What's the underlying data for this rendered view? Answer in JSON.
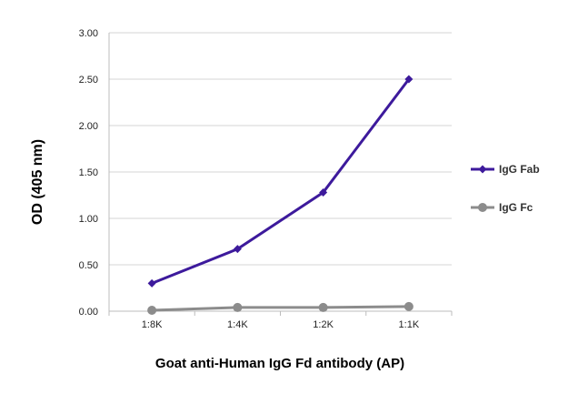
{
  "chart_data": {
    "type": "line",
    "title": "",
    "xlabel": "Goat anti-Human IgG Fd antibody (AP)",
    "ylabel": "OD (405 nm)",
    "categories": [
      "1:8K",
      "1:4K",
      "1:2K",
      "1:1K"
    ],
    "ylim": [
      0,
      3.0
    ],
    "yticks": [
      "0.00",
      "0.50",
      "1.00",
      "1.50",
      "2.00",
      "2.50",
      "3.00"
    ],
    "grid": true,
    "legend_position": "right",
    "series": [
      {
        "name": "IgG Fab",
        "values": [
          0.3,
          0.67,
          1.28,
          2.5
        ],
        "color": "#3d1a9c",
        "marker": "diamond"
      },
      {
        "name": "IgG Fc",
        "values": [
          0.01,
          0.04,
          0.04,
          0.05
        ],
        "color": "#8c8c8c",
        "marker": "circle"
      }
    ]
  }
}
